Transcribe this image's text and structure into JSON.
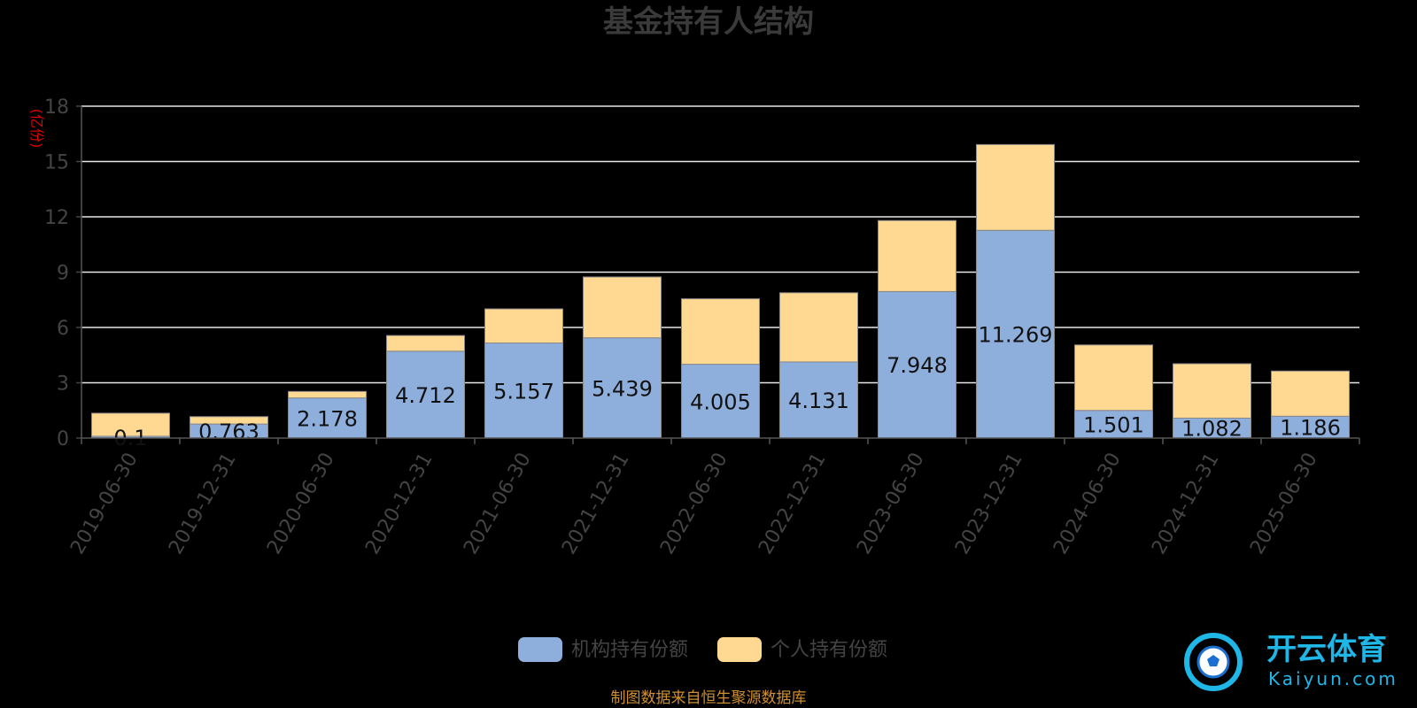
{
  "chart_data": {
    "type": "bar",
    "stacked": true,
    "title": "基金持有人结构",
    "ylabel": "(亿份)",
    "ylim": [
      0,
      18
    ],
    "yticks": [
      0,
      3,
      6,
      9,
      12,
      15,
      18
    ],
    "grid": true,
    "legend_position": "bottom-center",
    "categories": [
      "2019-06-30",
      "2019-12-31",
      "2020-06-30",
      "2020-12-31",
      "2021-06-30",
      "2021-12-31",
      "2022-06-30",
      "2022-12-31",
      "2023-06-30",
      "2023-12-31",
      "2024-06-30",
      "2024-12-31",
      "2025-06-30"
    ],
    "series": [
      {
        "name": "机构持有份额",
        "color": "#8eaedc",
        "values": [
          0.1,
          0.763,
          2.178,
          4.712,
          5.157,
          5.439,
          4.005,
          4.131,
          7.948,
          11.269,
          1.501,
          1.082,
          1.186
        ],
        "labels": [
          "0.1",
          "0.763",
          "2.178",
          "4.712",
          "5.157",
          "5.439",
          "4.005",
          "4.131",
          "7.948",
          "11.269",
          "1.501",
          "1.082",
          "1.186"
        ]
      },
      {
        "name": "个人持有份额",
        "color": "#ffd892",
        "values": [
          1.25,
          0.4,
          0.35,
          0.85,
          1.85,
          3.3,
          3.55,
          3.75,
          3.85,
          4.65,
          3.55,
          2.95,
          2.45
        ]
      }
    ]
  },
  "footer": {
    "source": "制图数据来自恒生聚源数据库"
  },
  "watermark": {
    "name": "开云体育",
    "domain": "Kaiyun.com"
  }
}
